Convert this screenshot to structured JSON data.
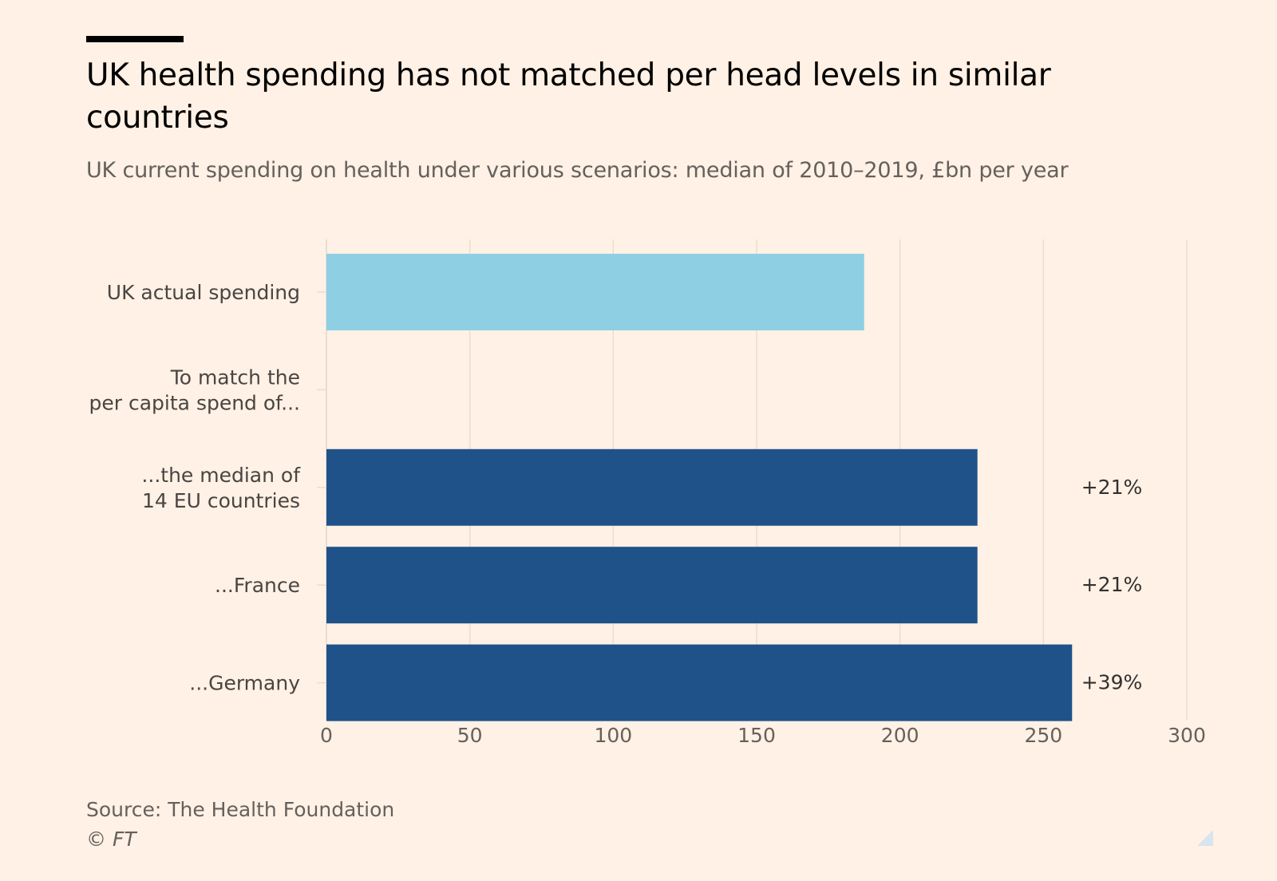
{
  "header": {
    "title": "UK health spending has not matched per head levels in similar countries",
    "subtitle": "UK current spending on health under various scenarios: median of 2010–2019, £bn per year"
  },
  "footer": {
    "source": "Source: The Health Foundation",
    "copyright": "© FT"
  },
  "colors": {
    "background": "#fff1e5",
    "light_bar": "#8fcfe4",
    "dark_bar": "#1f5288",
    "gridline": "#e9ddd2",
    "tick_text": "#66605c"
  },
  "chart_data": {
    "type": "bar",
    "orientation": "horizontal",
    "title": "UK health spending has not matched per head levels in similar countries",
    "subtitle": "UK current spending on health under various scenarios: median of 2010–2019, £bn per year",
    "categories": [
      [
        "UK actual spending"
      ],
      [
        "To match the",
        "per capita spend of..."
      ],
      [
        "...the median of",
        "14 EU countries"
      ],
      [
        "...France"
      ],
      [
        "...Germany"
      ]
    ],
    "values": [
      187.5,
      null,
      227,
      227,
      260
    ],
    "bar_styles": [
      "light",
      "none",
      "dark",
      "dark",
      "dark"
    ],
    "data_labels": [
      "",
      "",
      "+21%",
      "+21%",
      "+39%"
    ],
    "xlim": [
      0,
      300
    ],
    "xticks": [
      0,
      50,
      100,
      150,
      200,
      250,
      300
    ],
    "xlabel": "",
    "ylabel": "",
    "grid": true,
    "legend": "none"
  }
}
